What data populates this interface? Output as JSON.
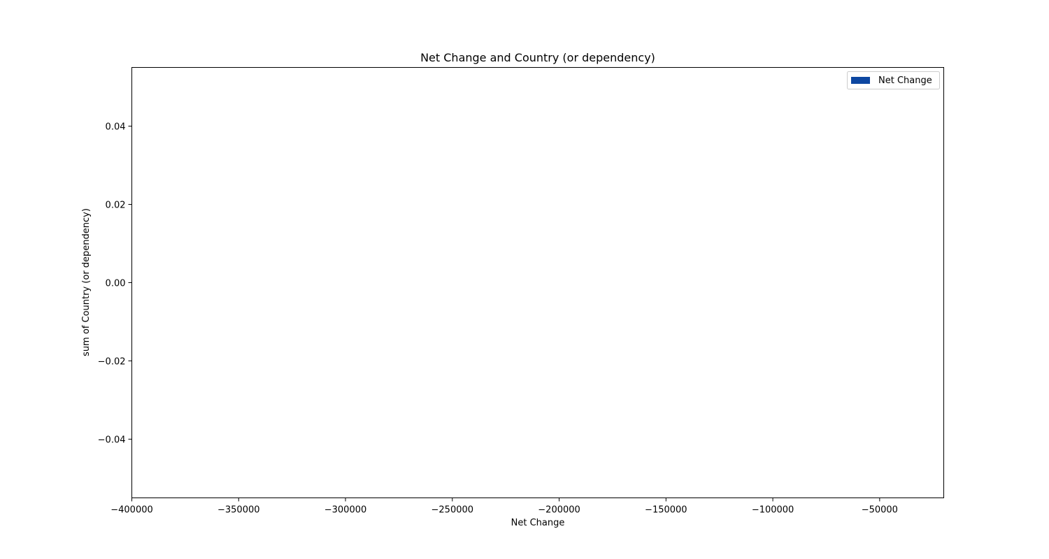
{
  "chart_data": {
    "type": "bar",
    "title": "Net Change and Country (or dependency)",
    "xlabel": "Net Change",
    "ylabel": "sum of Country (or dependency)",
    "xlim": [
      -400000,
      -20000
    ],
    "ylim": [
      -0.055,
      0.055
    ],
    "x_ticks": [
      -400000,
      -350000,
      -300000,
      -250000,
      -200000,
      -150000,
      -100000,
      -50000
    ],
    "x_tick_labels": [
      "−400000",
      "−350000",
      "−300000",
      "−250000",
      "−200000",
      "−150000",
      "−100000",
      "−50000"
    ],
    "y_ticks": [
      0.04,
      0.02,
      0.0,
      -0.02,
      -0.04
    ],
    "y_tick_labels": [
      "0.04",
      "0.02",
      "0.00",
      "−0.02",
      "−0.04"
    ],
    "series": [
      {
        "name": "Net Change",
        "color": "#0d47a1",
        "x": [],
        "values": []
      }
    ],
    "legend": {
      "placement": "top-right",
      "entries": [
        "Net Change"
      ]
    },
    "grid": false
  }
}
